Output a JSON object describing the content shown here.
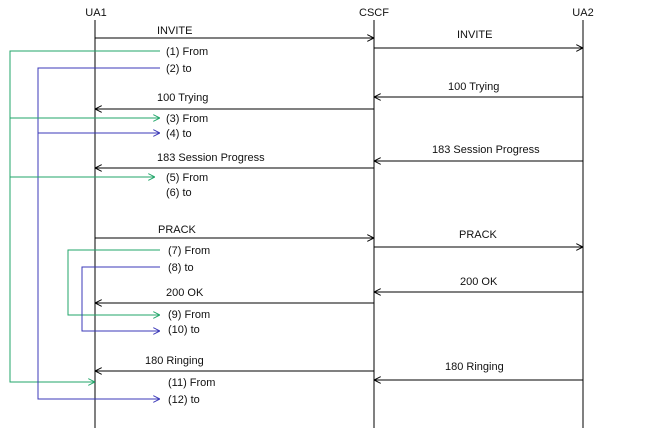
{
  "participants": {
    "ua1": "UA1",
    "cscf": "CSCF",
    "ua2": "UA2"
  },
  "messages": {
    "invite_1": "INVITE",
    "invite_2": "INVITE",
    "trying_2": "100 Trying",
    "trying_1": "100 Trying",
    "progress_2": "183 Session Progress",
    "progress_1": "183 Session Progress",
    "prack_1": "PRACK",
    "prack_2": "PRACK",
    "ok_2": "200 OK",
    "ok_1": "200 OK",
    "ringing_2": "180 Ringing",
    "ringing_1": "180 Ringing"
  },
  "annotations": {
    "a1": "(1) From",
    "a2": "(2) to",
    "a3": "(3) From",
    "a4": "(4) to",
    "a5": "(5) From",
    "a6": "(6) to",
    "a7": "(7) From",
    "a8": "(8) to",
    "a9": "(9) From",
    "a10": "(10) to",
    "a11": "(11) From",
    "a12": "(12) to"
  },
  "colors": {
    "from_link": "#22a66a",
    "to_link": "#3b38b8",
    "message": "#000000"
  }
}
